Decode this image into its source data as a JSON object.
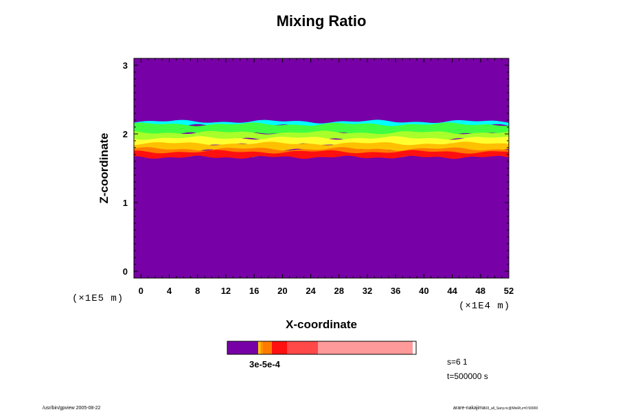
{
  "chart_data": {
    "type": "heatmap",
    "title": "Mixing Ratio",
    "xlabel": "X-coordinate",
    "ylabel": "Z-coordinate",
    "x_unit": "(×1E4 m)",
    "y_unit": "(×1E5 m)",
    "xlim": [
      -1,
      52
    ],
    "ylim": [
      -0.1,
      3.1
    ],
    "x_ticks": [
      0,
      4,
      8,
      12,
      16,
      20,
      24,
      28,
      32,
      36,
      40,
      44,
      48,
      52
    ],
    "y_ticks": [
      0,
      1,
      2,
      3
    ],
    "background_color": "#7700a6",
    "layers": [
      {
        "color": "#00ffff",
        "z_bottom": 2.12,
        "z_top": 2.18
      },
      {
        "color": "#40ff40",
        "z_bottom": 2.0,
        "z_top": 2.14
      },
      {
        "color": "#a8ff2a",
        "z_bottom": 1.92,
        "z_top": 2.02
      },
      {
        "color": "#ffff30",
        "z_bottom": 1.84,
        "z_top": 1.94
      },
      {
        "color": "#ffc000",
        "z_bottom": 1.76,
        "z_top": 1.86
      },
      {
        "color": "#ff7a00",
        "z_bottom": 1.68,
        "z_top": 1.78
      },
      {
        "color": "#ff1010",
        "z_bottom": 1.66,
        "z_top": 1.74
      }
    ],
    "colorbar": {
      "segments": [
        {
          "color": "#7700a6",
          "width": 45
        },
        {
          "color": "#ffd000",
          "width": 2
        },
        {
          "color": "#ffb000",
          "width": 2
        },
        {
          "color": "#ff9000",
          "width": 3
        },
        {
          "color": "#ff7a00",
          "width": 13
        },
        {
          "color": "#ff1010",
          "width": 22
        },
        {
          "color": "#ff4848",
          "width": 45
        },
        {
          "color": "#ff9a9a",
          "width": 138
        }
      ],
      "label": "3e-5e-4"
    }
  },
  "info": {
    "step": "s=6 1",
    "time": "t=500000 s"
  },
  "footer": {
    "left": "/usr/bin/gpview 2005-08-22",
    "right_user": "arare-nakajima",
    "right_detail": "03_all_Sany.nc@MixRt,z=0:50000"
  }
}
